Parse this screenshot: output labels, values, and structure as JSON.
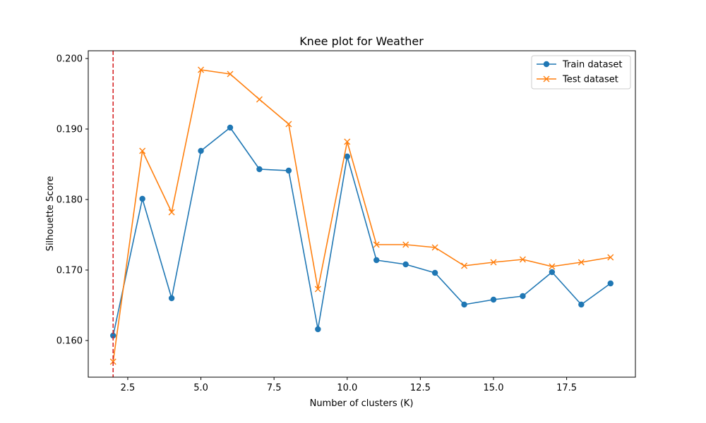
{
  "chart_data": {
    "type": "line",
    "title": "Knee plot for Weather",
    "xlabel": "Number of clusters (K)",
    "ylabel": "Silhouette Score",
    "xlim": [
      1.15,
      19.85
    ],
    "ylim": [
      0.1548,
      0.2011
    ],
    "xticks": [
      2.5,
      5.0,
      7.5,
      10.0,
      12.5,
      15.0,
      17.5
    ],
    "xtick_labels": [
      "2.5",
      "5.0",
      "7.5",
      "10.0",
      "12.5",
      "15.0",
      "17.5"
    ],
    "yticks": [
      0.16,
      0.17,
      0.18,
      0.19,
      0.2
    ],
    "ytick_labels": [
      "0.160",
      "0.170",
      "0.180",
      "0.190",
      "0.200"
    ],
    "grid": false,
    "legend_position": "top-right",
    "x": [
      2,
      3,
      4,
      5,
      6,
      7,
      8,
      9,
      10,
      11,
      12,
      13,
      14,
      15,
      16,
      17,
      18,
      19
    ],
    "series": [
      {
        "name": "Train dataset",
        "color": "#1f77b4",
        "marker": "circle",
        "values": [
          0.1607,
          0.1801,
          0.166,
          0.1869,
          0.1902,
          0.1843,
          0.1841,
          0.1616,
          0.1861,
          0.1714,
          0.1708,
          0.1696,
          0.1651,
          0.1658,
          0.1663,
          0.1697,
          0.1651,
          0.1681
        ]
      },
      {
        "name": "Test dataset",
        "color": "#ff7f0e",
        "marker": "x",
        "values": [
          0.157,
          0.1869,
          0.1782,
          0.1984,
          0.1978,
          0.1942,
          0.1907,
          0.1673,
          0.1882,
          0.1736,
          0.1736,
          0.1732,
          0.1706,
          0.1711,
          0.1715,
          0.1705,
          0.1711,
          0.1718
        ]
      }
    ],
    "vline": {
      "x": 2,
      "color": "#d62728",
      "style": "dashed"
    }
  }
}
